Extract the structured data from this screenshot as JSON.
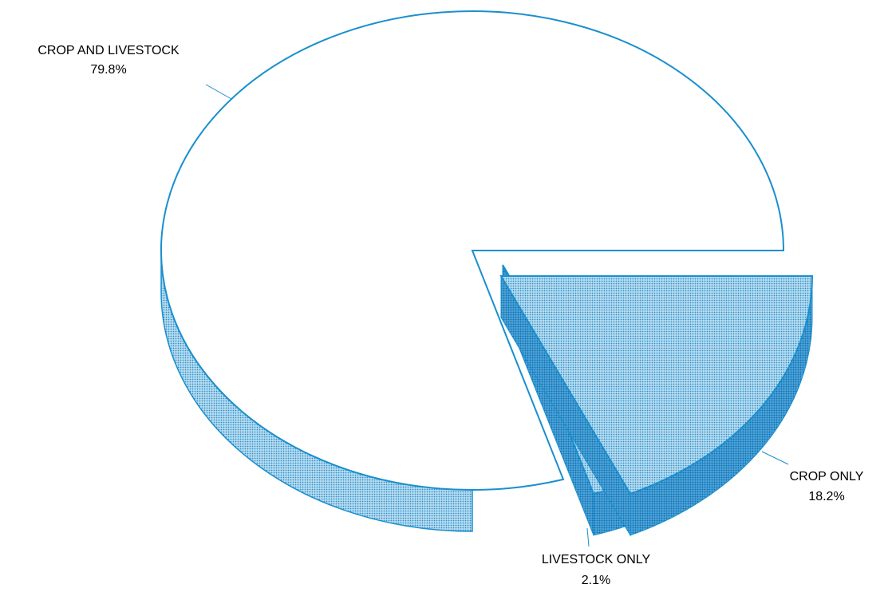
{
  "chart_data": {
    "type": "pie",
    "style": "3d-exploded",
    "slices": [
      {
        "label": "CROP AND LIVESTOCK",
        "value": 79.8,
        "value_label": "79.8%"
      },
      {
        "label": "LIVESTOCK ONLY",
        "value": 2.1,
        "value_label": "2.1%"
      },
      {
        "label": "CROP ONLY",
        "value": 18.2,
        "value_label": "18.2%"
      }
    ]
  },
  "colors": {
    "accent": "#1a8fce",
    "side_light": "#a9d3ec",
    "face_fill": "#ffffff",
    "label_text": "#1a7fc0"
  }
}
